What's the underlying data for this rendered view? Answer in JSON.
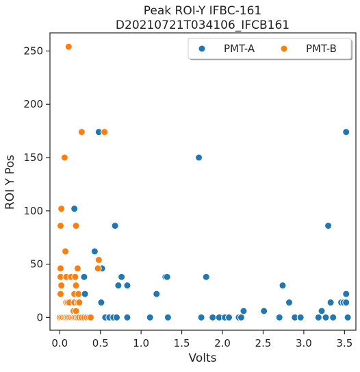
{
  "chart_data": {
    "type": "scatter",
    "title_lines": [
      "Peak ROI-Y IFBC-161",
      "D20210721T034106_IFCB161"
    ],
    "xlabel": "Volts",
    "ylabel": "ROI Y Pos",
    "xlim": [
      -0.12,
      3.64
    ],
    "ylim": [
      -12,
      267
    ],
    "xticks": [
      0.0,
      0.5,
      1.0,
      1.5,
      2.0,
      2.5,
      3.0,
      3.5
    ],
    "xtick_labels": [
      "0.0",
      "0.5",
      "1.0",
      "1.5",
      "2.0",
      "2.5",
      "3.0",
      "3.5"
    ],
    "yticks": [
      0,
      50,
      100,
      150,
      200,
      250
    ],
    "ytick_labels": [
      "0",
      "50",
      "100",
      "150",
      "200",
      "250"
    ],
    "grid": false,
    "legend_position": "top-right",
    "series": [
      {
        "name": "PMT-A",
        "color": "#1f77b4",
        "points": [
          [
            0.18,
            102
          ],
          [
            0.43,
            62
          ],
          [
            0.48,
            174
          ],
          [
            0.52,
            46
          ],
          [
            0.51,
            14
          ],
          [
            0.56,
            0
          ],
          [
            0.61,
            0
          ],
          [
            0.66,
            0
          ],
          [
            0.68,
            86
          ],
          [
            0.7,
            0
          ],
          [
            0.72,
            30
          ],
          [
            0.76,
            38
          ],
          [
            0.83,
            30
          ],
          [
            0.83,
            0
          ],
          [
            0.3,
            38
          ],
          [
            0.31,
            22
          ],
          [
            0.26,
            0
          ],
          [
            0.29,
            0
          ],
          [
            0.36,
            0
          ],
          [
            1.11,
            0
          ],
          [
            1.19,
            22
          ],
          [
            1.3,
            38
          ],
          [
            1.32,
            38
          ],
          [
            1.33,
            0
          ],
          [
            1.71,
            150
          ],
          [
            1.74,
            0
          ],
          [
            1.8,
            38
          ],
          [
            1.88,
            0
          ],
          [
            1.96,
            0
          ],
          [
            2.03,
            0
          ],
          [
            2.08,
            0
          ],
          [
            2.2,
            0
          ],
          [
            2.23,
            0
          ],
          [
            2.26,
            6
          ],
          [
            2.51,
            6
          ],
          [
            2.7,
            0
          ],
          [
            2.74,
            30
          ],
          [
            2.82,
            14
          ],
          [
            2.89,
            0
          ],
          [
            2.96,
            0
          ],
          [
            3.18,
            0
          ],
          [
            3.22,
            6
          ],
          [
            3.27,
            0
          ],
          [
            3.3,
            86
          ],
          [
            3.33,
            14
          ],
          [
            3.36,
            0
          ],
          [
            3.46,
            14
          ],
          [
            3.49,
            14
          ],
          [
            3.52,
            22
          ],
          [
            3.52,
            14
          ],
          [
            3.52,
            174
          ],
          [
            3.54,
            0
          ]
        ]
      },
      {
        "name": "PMT-B",
        "color": "#ff7f0e",
        "points": [
          [
            0.11,
            254
          ],
          [
            0.27,
            174
          ],
          [
            0.55,
            174
          ],
          [
            0.06,
            150
          ],
          [
            0.02,
            102
          ],
          [
            0.01,
            86
          ],
          [
            0.2,
            86
          ],
          [
            0.07,
            62
          ],
          [
            0.48,
            54
          ],
          [
            0.01,
            46
          ],
          [
            0.22,
            46
          ],
          [
            0.47,
            46
          ],
          [
            0.01,
            38
          ],
          [
            0.08,
            38
          ],
          [
            0.14,
            38
          ],
          [
            0.19,
            38
          ],
          [
            0.02,
            30
          ],
          [
            0.2,
            30
          ],
          [
            0.01,
            22
          ],
          [
            0.18,
            22
          ],
          [
            0.23,
            22
          ],
          [
            0.08,
            14
          ],
          [
            0.1,
            14
          ],
          [
            0.12,
            14
          ],
          [
            0.18,
            14
          ],
          [
            0.22,
            14
          ],
          [
            0.24,
            14
          ],
          [
            0.17,
            6
          ],
          [
            0.2,
            6
          ],
          [
            0.0,
            0
          ],
          [
            0.02,
            0
          ],
          [
            0.04,
            0
          ],
          [
            0.06,
            0
          ],
          [
            0.08,
            0
          ],
          [
            0.1,
            0
          ],
          [
            0.12,
            0
          ],
          [
            0.14,
            0
          ],
          [
            0.16,
            0
          ],
          [
            0.18,
            0
          ],
          [
            0.2,
            0
          ],
          [
            0.22,
            0
          ],
          [
            0.24,
            0
          ],
          [
            0.27,
            0
          ],
          [
            0.3,
            0
          ],
          [
            0.33,
            0
          ],
          [
            0.36,
            0
          ],
          [
            0.38,
            0
          ]
        ]
      }
    ]
  }
}
